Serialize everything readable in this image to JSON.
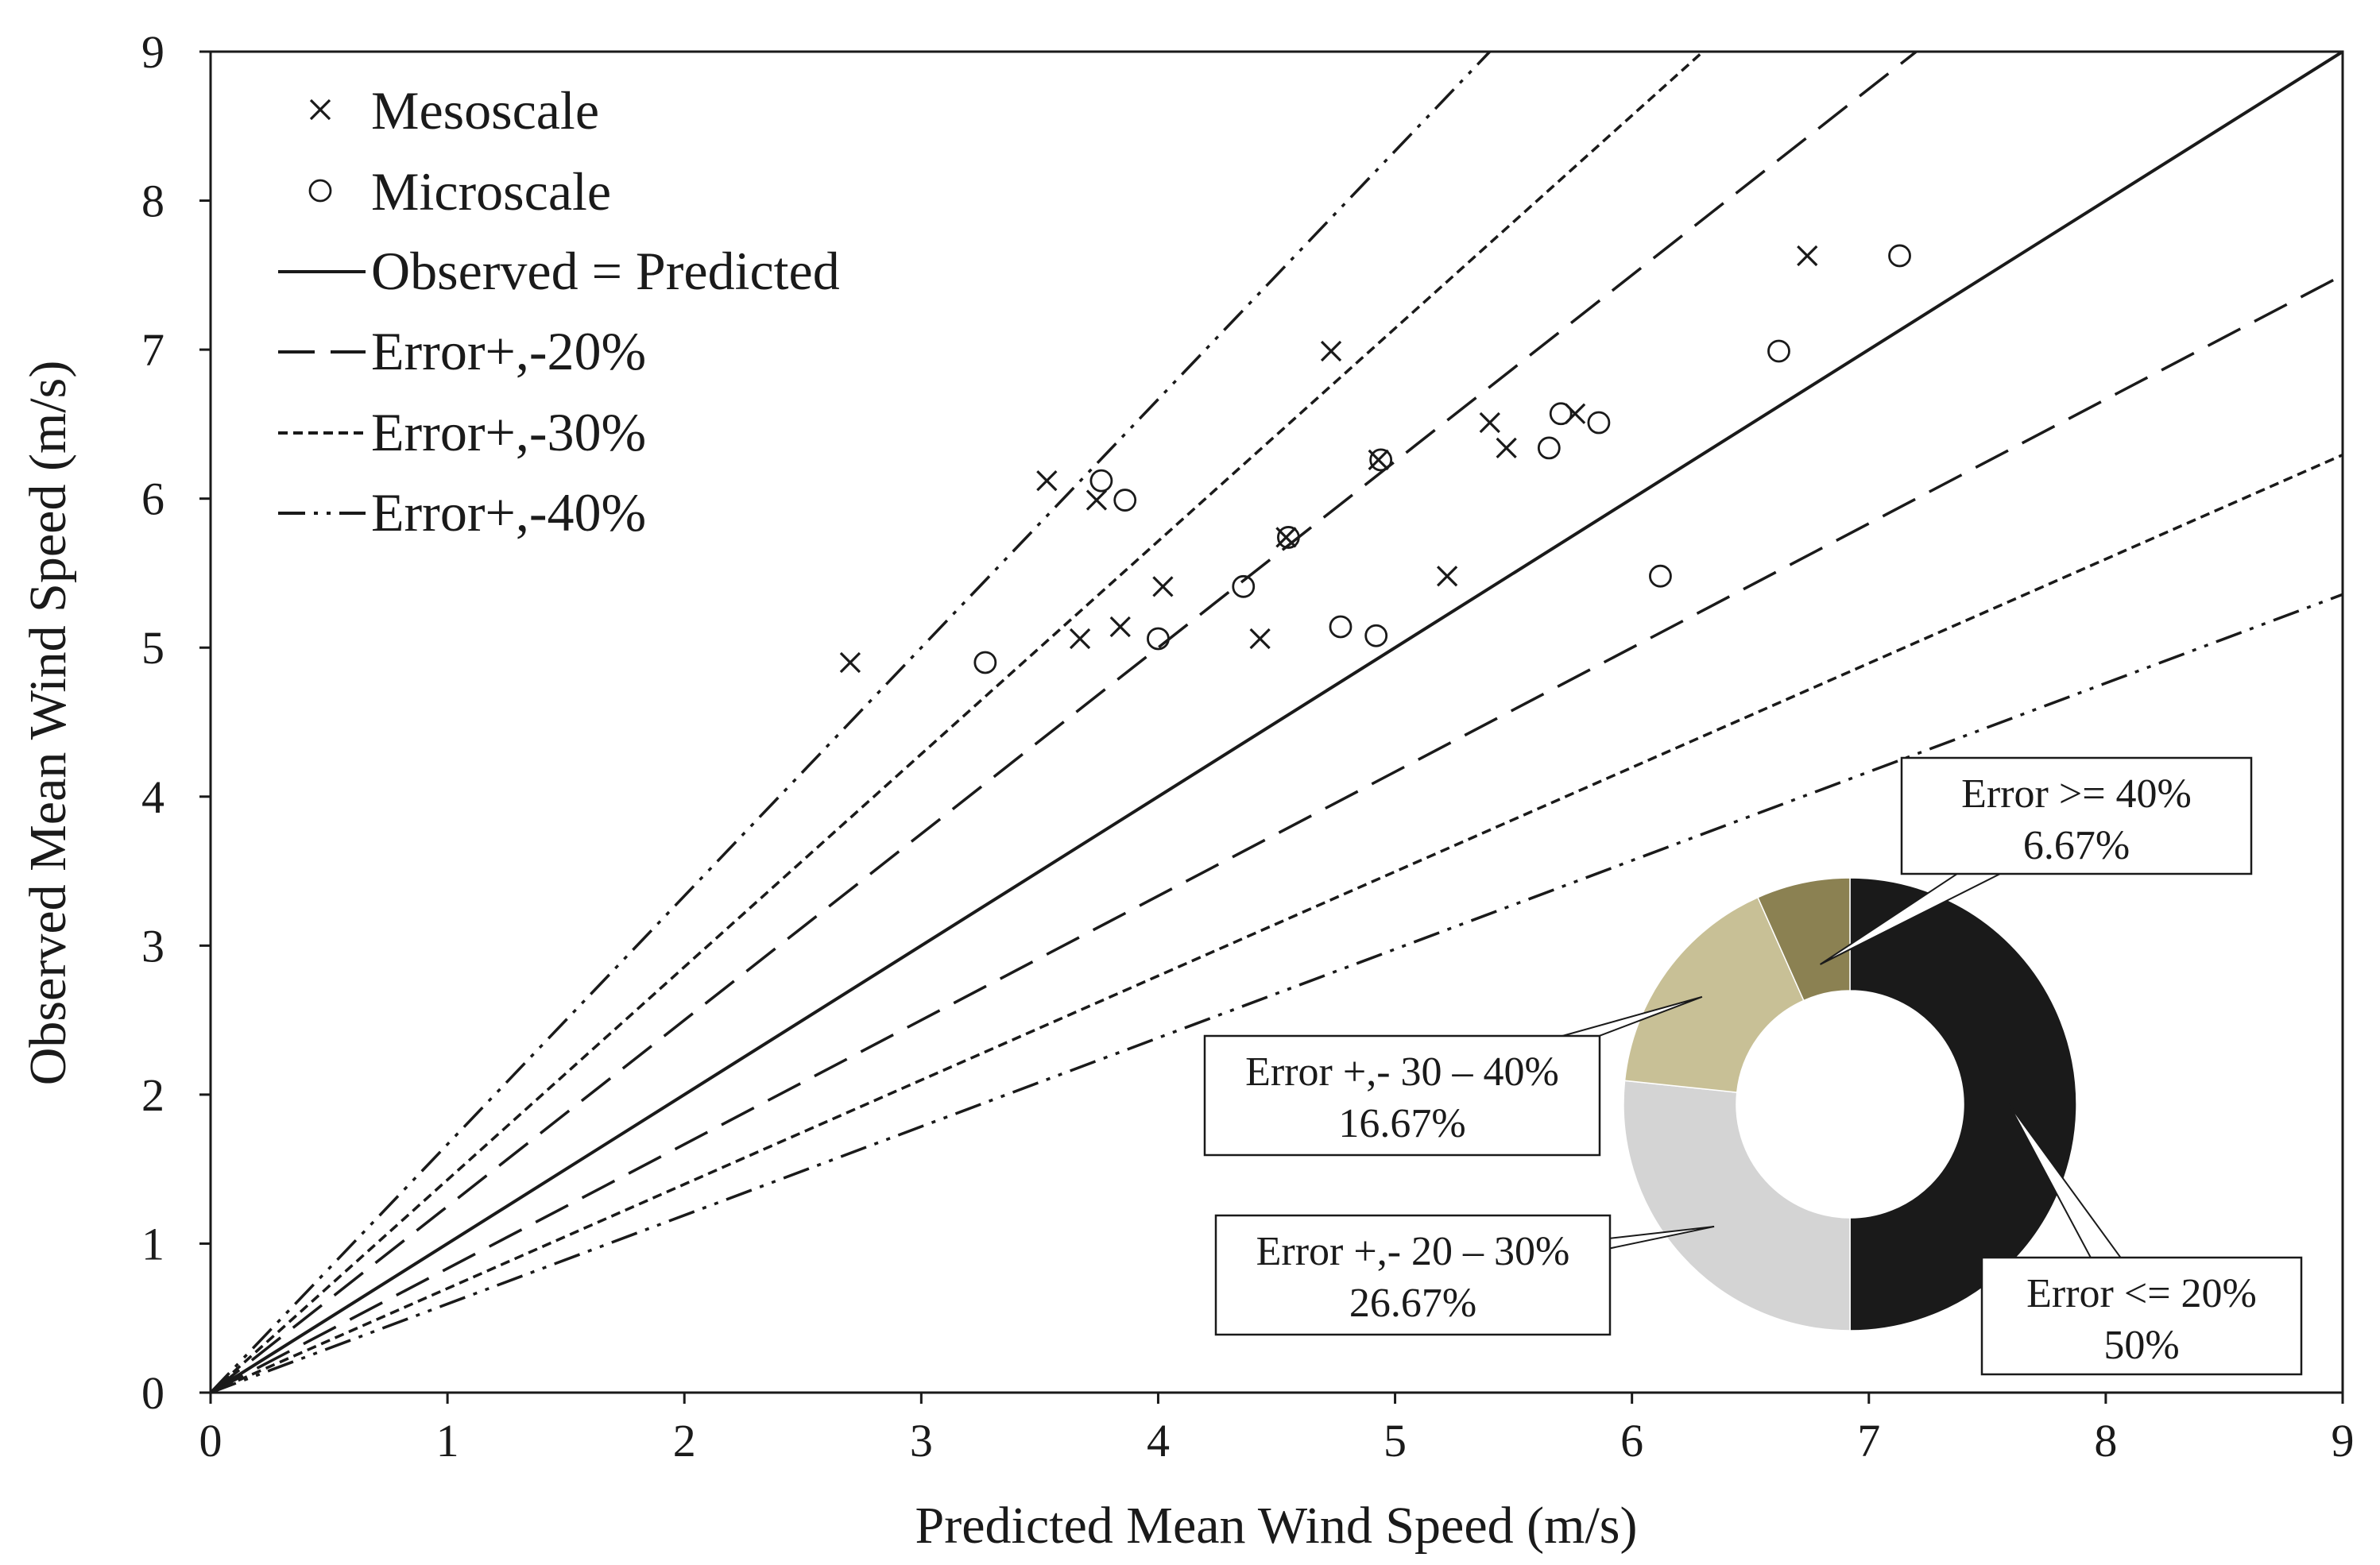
{
  "chart_data": [
    {
      "type": "scatter",
      "xlabel": "Predicted Mean Wind Speed (m/s)",
      "ylabel": "Observed Mean Wind Speed (m/s)",
      "xlim": [
        0,
        9
      ],
      "ylim": [
        0,
        9
      ],
      "xticks": [
        "0",
        "1",
        "2",
        "3",
        "4",
        "5",
        "6",
        "7",
        "8",
        "9"
      ],
      "yticks": [
        "0",
        "1",
        "2",
        "3",
        "4",
        "5",
        "6",
        "7",
        "8",
        "9"
      ],
      "grid": false,
      "legend_position": "top-left",
      "series": [
        {
          "name": "Mesoscale",
          "marker": "x",
          "points": [
            {
              "x": 2.7,
              "y": 4.9
            },
            {
              "x": 3.53,
              "y": 6.12
            },
            {
              "x": 3.67,
              "y": 5.06
            },
            {
              "x": 3.74,
              "y": 5.99
            },
            {
              "x": 3.84,
              "y": 5.14
            },
            {
              "x": 4.02,
              "y": 5.41
            },
            {
              "x": 4.43,
              "y": 5.06
            },
            {
              "x": 4.54,
              "y": 5.74
            },
            {
              "x": 4.73,
              "y": 6.99
            },
            {
              "x": 4.93,
              "y": 6.26
            },
            {
              "x": 5.22,
              "y": 5.48
            },
            {
              "x": 5.4,
              "y": 6.51
            },
            {
              "x": 5.47,
              "y": 6.34
            },
            {
              "x": 5.76,
              "y": 6.57
            },
            {
              "x": 6.74,
              "y": 7.63
            }
          ]
        },
        {
          "name": "Microscale",
          "marker": "o",
          "points": [
            {
              "x": 3.27,
              "y": 4.9
            },
            {
              "x": 3.76,
              "y": 6.12
            },
            {
              "x": 3.86,
              "y": 5.99
            },
            {
              "x": 4.0,
              "y": 5.06
            },
            {
              "x": 4.36,
              "y": 5.41
            },
            {
              "x": 4.55,
              "y": 5.74
            },
            {
              "x": 4.77,
              "y": 5.14
            },
            {
              "x": 4.92,
              "y": 5.08
            },
            {
              "x": 4.94,
              "y": 6.26
            },
            {
              "x": 5.65,
              "y": 6.34
            },
            {
              "x": 5.7,
              "y": 6.57
            },
            {
              "x": 5.86,
              "y": 6.51
            },
            {
              "x": 6.12,
              "y": 5.48
            },
            {
              "x": 6.62,
              "y": 6.99
            },
            {
              "x": 7.13,
              "y": 7.63
            }
          ]
        }
      ],
      "reference_lines": [
        {
          "name": "Observed = Predicted",
          "style": "solid",
          "slopes": [
            1.0
          ]
        },
        {
          "name": "Error+,-20%",
          "style": "long-dash",
          "slopes": [
            1.25,
            0.8333
          ]
        },
        {
          "name": "Error+,-30%",
          "style": "short-dash",
          "slopes": [
            1.4286,
            0.6993
          ]
        },
        {
          "name": "Error+,-40%",
          "style": "dash-dot-dot",
          "slopes": [
            1.6667,
            0.5952
          ]
        }
      ]
    },
    {
      "type": "pie",
      "style": "donut",
      "position": "bottom-right inset",
      "slices": [
        {
          "label": "Error <= 20%",
          "value": 50,
          "value_text": "50%",
          "color": "#1a1a1a"
        },
        {
          "label": "Error +,- 20 – 30%",
          "value": 26.67,
          "value_text": "26.67%",
          "color": "#d4d4d4"
        },
        {
          "label": "Error +,- 30 – 40%",
          "value": 16.67,
          "value_text": "16.67%",
          "color": "#c8c096"
        },
        {
          "label": "Error >= 40%",
          "value": 6.67,
          "value_text": "6.67%",
          "color": "#8b8152"
        }
      ]
    }
  ]
}
